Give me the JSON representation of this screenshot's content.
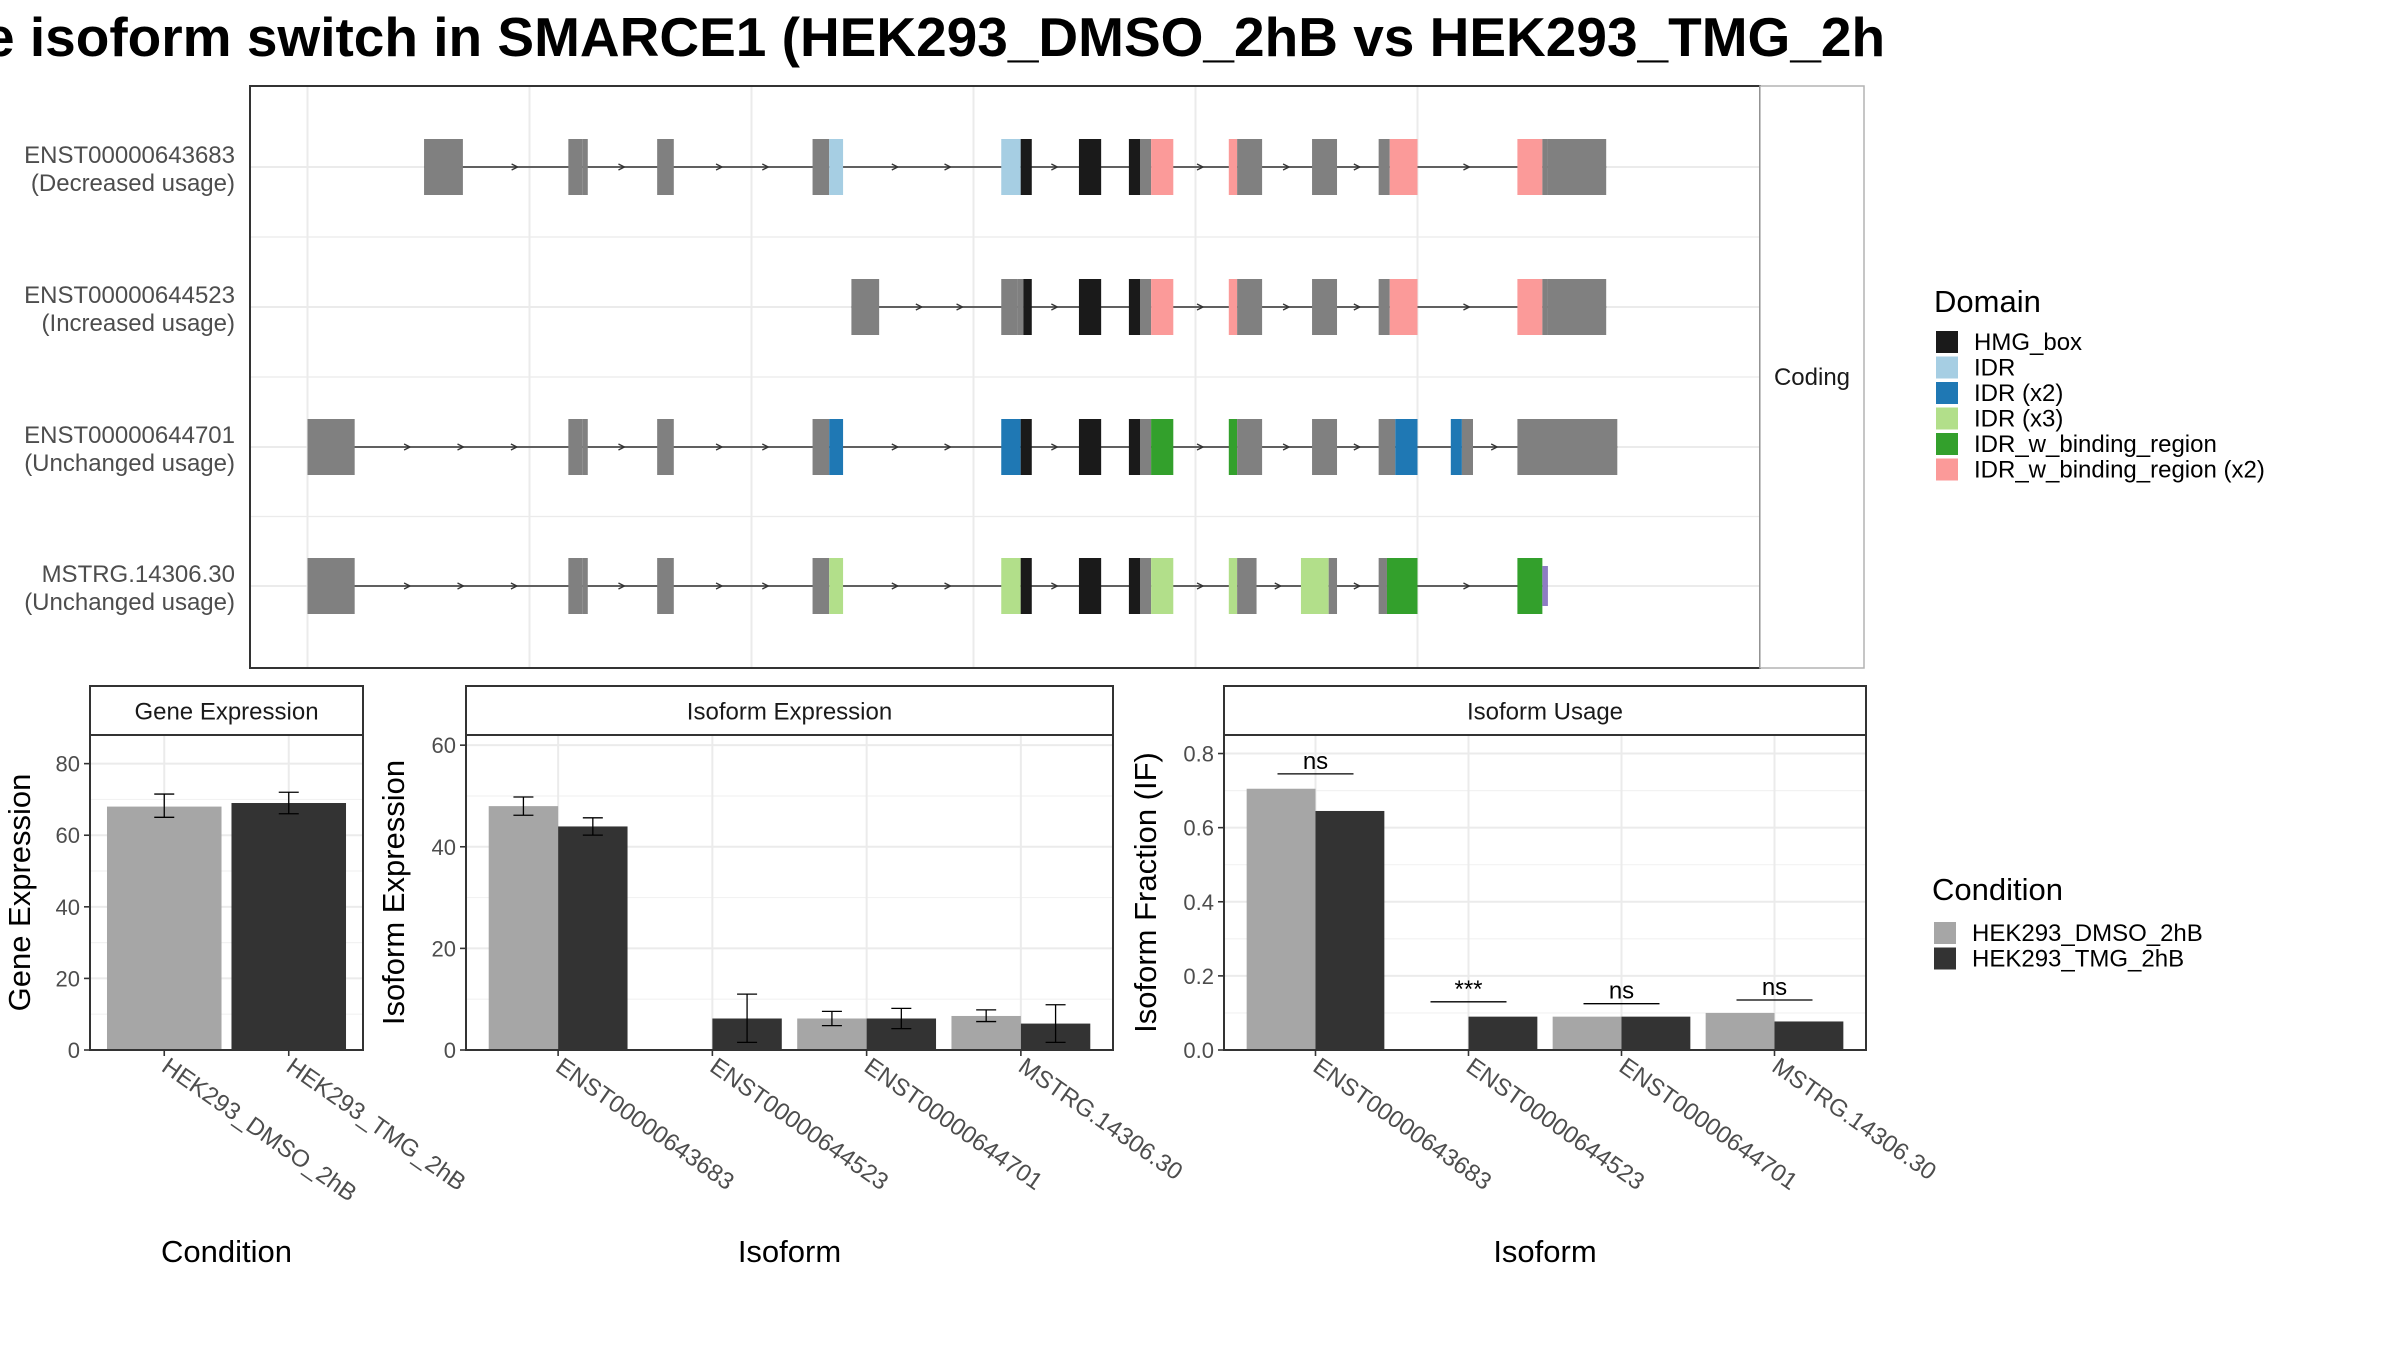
{
  "title": "e isoform switch in SMARCE1 (HEK293_DMSO_2hB vs HEK293_TMG_2h",
  "colors": {
    "HMG_box": "#1a1a1a",
    "IDR": "#a6cee3",
    "IDR (x2)": "#1f78b4",
    "IDR (x3)": "#b2df8a",
    "IDR_w_binding_region": "#33a02c",
    "IDR_w_binding_region (x2)": "#fb9a99",
    "non_domain": "#808080",
    "utr_tail": "#8e7cc3",
    "dmso": "#a6a6a6",
    "tmg": "#333333"
  },
  "chart_data": [
    {
      "type": "transcript_structure",
      "strip_label": "Coding",
      "transcripts": [
        {
          "id": "ENST00000643683",
          "usage": "(Decreased usage)",
          "exons": [
            {
              "s": 3.1,
              "e": 3.8,
              "kind": "utr"
            },
            {
              "s": 5.7,
              "e": 5.95,
              "kind": "utr"
            },
            {
              "s": 5.95,
              "e": 6.05
            },
            {
              "s": 7.3,
              "e": 7.6
            },
            {
              "s": 10.1,
              "e": 10.4
            },
            {
              "s": 10.4,
              "e": 10.65,
              "domain": "IDR"
            },
            {
              "s": 13.5,
              "e": 13.85,
              "domain": "IDR"
            },
            {
              "s": 13.85,
              "e": 14.05,
              "domain": "HMG_box"
            },
            {
              "s": 14.9,
              "e": 15.3,
              "domain": "HMG_box"
            },
            {
              "s": 15.8,
              "e": 16.0,
              "domain": "HMG_box"
            },
            {
              "s": 16.0,
              "e": 16.2
            },
            {
              "s": 16.2,
              "e": 16.6,
              "domain": "IDR_w_binding_region (x2)"
            },
            {
              "s": 17.6,
              "e": 17.75,
              "domain": "IDR_w_binding_region (x2)"
            },
            {
              "s": 17.75,
              "e": 18.2
            },
            {
              "s": 19.1,
              "e": 19.55
            },
            {
              "s": 20.3,
              "e": 20.5
            },
            {
              "s": 20.5,
              "e": 21.0,
              "domain": "IDR_w_binding_region (x2)"
            },
            {
              "s": 22.8,
              "e": 23.25,
              "domain": "IDR_w_binding_region (x2)"
            },
            {
              "s": 23.25,
              "e": 23.35
            },
            {
              "s": 23.35,
              "e": 24.4,
              "kind": "utr"
            }
          ]
        },
        {
          "id": "ENST00000644523",
          "usage": "(Increased usage)",
          "exons": [
            {
              "s": 10.8,
              "e": 11.3,
              "kind": "utr"
            },
            {
              "s": 13.5,
              "e": 13.8,
              "kind": "utr"
            },
            {
              "s": 13.8,
              "e": 13.9
            },
            {
              "s": 13.9,
              "e": 14.05,
              "domain": "HMG_box"
            },
            {
              "s": 14.9,
              "e": 15.3,
              "domain": "HMG_box"
            },
            {
              "s": 15.8,
              "e": 16.0,
              "domain": "HMG_box"
            },
            {
              "s": 16.0,
              "e": 16.2
            },
            {
              "s": 16.2,
              "e": 16.6,
              "domain": "IDR_w_binding_region (x2)"
            },
            {
              "s": 17.6,
              "e": 17.75,
              "domain": "IDR_w_binding_region (x2)"
            },
            {
              "s": 17.75,
              "e": 18.2
            },
            {
              "s": 19.1,
              "e": 19.55
            },
            {
              "s": 20.3,
              "e": 20.5
            },
            {
              "s": 20.5,
              "e": 21.0,
              "domain": "IDR_w_binding_region (x2)"
            },
            {
              "s": 22.8,
              "e": 23.25,
              "domain": "IDR_w_binding_region (x2)"
            },
            {
              "s": 23.25,
              "e": 23.35
            },
            {
              "s": 23.35,
              "e": 24.4,
              "kind": "utr"
            }
          ]
        },
        {
          "id": "ENST00000644701",
          "usage": "(Unchanged usage)",
          "exons": [
            {
              "s": 1.0,
              "e": 1.85,
              "kind": "utr"
            },
            {
              "s": 5.7,
              "e": 5.95,
              "kind": "utr"
            },
            {
              "s": 5.95,
              "e": 6.05
            },
            {
              "s": 7.3,
              "e": 7.6
            },
            {
              "s": 10.1,
              "e": 10.4
            },
            {
              "s": 10.4,
              "e": 10.65,
              "domain": "IDR (x2)"
            },
            {
              "s": 13.5,
              "e": 13.85,
              "domain": "IDR (x2)"
            },
            {
              "s": 13.85,
              "e": 14.05,
              "domain": "HMG_box"
            },
            {
              "s": 14.9,
              "e": 15.3,
              "domain": "HMG_box"
            },
            {
              "s": 15.8,
              "e": 16.0,
              "domain": "HMG_box"
            },
            {
              "s": 16.0,
              "e": 16.2
            },
            {
              "s": 16.2,
              "e": 16.6,
              "domain": "IDR_w_binding_region"
            },
            {
              "s": 17.6,
              "e": 17.75,
              "domain": "IDR_w_binding_region"
            },
            {
              "s": 17.75,
              "e": 18.2
            },
            {
              "s": 19.1,
              "e": 19.55
            },
            {
              "s": 20.3,
              "e": 20.6
            },
            {
              "s": 20.6,
              "e": 21.0,
              "domain": "IDR (x2)"
            },
            {
              "s": 21.6,
              "e": 21.8,
              "domain": "IDR (x2)"
            },
            {
              "s": 21.8,
              "e": 22.0,
              "kind": "utr"
            },
            {
              "s": 22.8,
              "e": 24.6,
              "kind": "utr"
            }
          ]
        },
        {
          "id": "MSTRG.14306.30",
          "usage": "(Unchanged usage)",
          "exons": [
            {
              "s": 1.0,
              "e": 1.85,
              "kind": "utr"
            },
            {
              "s": 5.7,
              "e": 5.95,
              "kind": "utr"
            },
            {
              "s": 5.95,
              "e": 6.05
            },
            {
              "s": 7.3,
              "e": 7.6
            },
            {
              "s": 10.1,
              "e": 10.4
            },
            {
              "s": 10.4,
              "e": 10.65,
              "domain": "IDR (x3)"
            },
            {
              "s": 13.5,
              "e": 13.85,
              "domain": "IDR (x3)"
            },
            {
              "s": 13.85,
              "e": 14.05,
              "domain": "HMG_box"
            },
            {
              "s": 14.9,
              "e": 15.3,
              "domain": "HMG_box"
            },
            {
              "s": 15.8,
              "e": 16.0,
              "domain": "HMG_box"
            },
            {
              "s": 16.0,
              "e": 16.2
            },
            {
              "s": 16.2,
              "e": 16.6,
              "domain": "IDR (x3)"
            },
            {
              "s": 17.6,
              "e": 17.75,
              "domain": "IDR (x3)"
            },
            {
              "s": 17.75,
              "e": 18.1
            },
            {
              "s": 18.9,
              "e": 19.4,
              "domain": "IDR (x3)"
            },
            {
              "s": 19.4,
              "e": 19.55
            },
            {
              "s": 20.3,
              "e": 20.45
            },
            {
              "s": 20.45,
              "e": 21.0,
              "domain": "IDR_w_binding_region"
            },
            {
              "s": 22.8,
              "e": 23.25,
              "domain": "IDR_w_binding_region"
            },
            {
              "s": 23.25,
              "e": 23.35,
              "kind": "tail"
            }
          ]
        }
      ]
    },
    {
      "type": "bar",
      "title": "Gene Expression",
      "xlabel": "Condition",
      "ylabel": "Gene Expression",
      "ylim": [
        0,
        88
      ],
      "yticks": [
        0,
        20,
        40,
        60,
        80
      ],
      "categories": [
        "HEK293_DMSO_2hB",
        "HEK293_TMG_2hB"
      ],
      "values": [
        68,
        69
      ],
      "errors": [
        [
          65,
          71.5
        ],
        [
          66,
          72
        ]
      ]
    },
    {
      "type": "bar",
      "title": "Isoform Expression",
      "xlabel": "Isoform",
      "ylabel": "Isoform Expression",
      "ylim": [
        0,
        62
      ],
      "yticks": [
        0,
        20,
        40,
        60
      ],
      "categories": [
        "ENST00000643683",
        "ENST00000644523",
        "ENST00000644701",
        "MSTRG.14306.30"
      ],
      "series": [
        {
          "name": "HEK293_DMSO_2hB",
          "values": [
            48,
            0,
            6.2,
            6.7
          ],
          "errors": [
            [
              46.2,
              49.8
            ],
            [
              0,
              0
            ],
            [
              4.8,
              7.6
            ],
            [
              5.6,
              7.9
            ]
          ]
        },
        {
          "name": "HEK293_TMG_2hB",
          "values": [
            44,
            6.2,
            6.2,
            5.2
          ],
          "errors": [
            [
              42.3,
              45.7
            ],
            [
              1.5,
              11
            ],
            [
              4.2,
              8.2
            ],
            [
              1.5,
              8.9
            ]
          ]
        }
      ]
    },
    {
      "type": "bar",
      "title": "Isoform Usage",
      "xlabel": "Isoform",
      "ylabel": "Isoform Fraction (IF)",
      "ylim": [
        0,
        0.85
      ],
      "yticks": [
        0.0,
        0.2,
        0.4,
        0.6,
        0.8
      ],
      "categories": [
        "ENST00000643683",
        "ENST00000644523",
        "ENST00000644701",
        "MSTRG.14306.30"
      ],
      "series": [
        {
          "name": "HEK293_DMSO_2hB",
          "values": [
            0.705,
            0.0,
            0.09,
            0.1
          ]
        },
        {
          "name": "HEK293_TMG_2hB",
          "values": [
            0.645,
            0.09,
            0.09,
            0.077
          ]
        }
      ],
      "significance": [
        "ns",
        "***",
        "ns",
        "ns"
      ],
      "sig_levels": [
        0.745,
        0.13,
        0.125,
        0.135
      ]
    }
  ],
  "legend_domain": {
    "title": "Domain",
    "items": [
      "HMG_box",
      "IDR",
      "IDR (x2)",
      "IDR (x3)",
      "IDR_w_binding_region",
      "IDR_w_binding_region (x2)"
    ]
  },
  "legend_condition": {
    "title": "Condition",
    "items": [
      "HEK293_DMSO_2hB",
      "HEK293_TMG_2hB"
    ]
  }
}
